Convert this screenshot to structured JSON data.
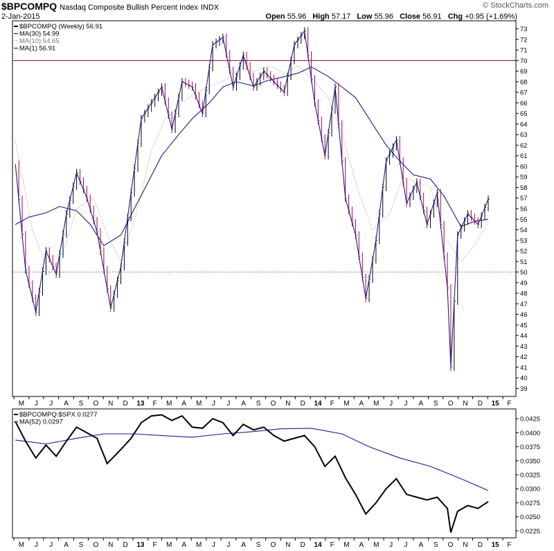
{
  "header": {
    "symbol": "$BPCOMPQ",
    "description": "Nasdaq Composite Bullish Percent Index",
    "exchange": "INDX",
    "date": "2-Jan-2015",
    "copyright": "© StockCharts.com",
    "open_label": "Open",
    "open": "55.96",
    "high_label": "High",
    "high": "57.17",
    "low_label": "Low",
    "low": "55.96",
    "close_label": "Close",
    "close": "56.91",
    "chg_label": "Chg",
    "chg": "+0.95 (+1.69%)"
  },
  "colors": {
    "price_up": "#000000",
    "price_down": "#b0003a",
    "ma30": "#1b1b8f",
    "ma10": "#aaaaaa",
    "ma1": "#1b1b8f",
    "ref70": "#8b0030",
    "ref50": "#888888",
    "ratio": "#000000",
    "ratio_ma": "#1b1b8f"
  },
  "chart_data": [
    {
      "type": "line",
      "panel": "price",
      "legend": [
        {
          "label": "$BPCOMPQ (Weekly) 56.91",
          "style": "line-black"
        },
        {
          "label": "MA(30) 54.99",
          "style": "line-navy"
        },
        {
          "label": "MA(10) 54.65",
          "style": "dotted-gray"
        },
        {
          "label": "MA(1) 56.91",
          "style": "line-navy"
        }
      ],
      "ylim": [
        38.5,
        73.5
      ],
      "yticks": [
        39,
        40,
        41,
        42,
        43,
        44,
        45,
        46,
        47,
        48,
        49,
        50,
        51,
        52,
        53,
        54,
        55,
        56,
        57,
        58,
        59,
        60,
        61,
        62,
        63,
        64,
        65,
        66,
        67,
        68,
        69,
        70,
        71,
        72,
        73
      ],
      "reference_lines": [
        {
          "value": 70,
          "style": "solid"
        },
        {
          "value": 50,
          "style": "dotted"
        }
      ],
      "x_months": [
        "2012-05",
        "2012-06",
        "2012-07",
        "2012-08",
        "2012-09",
        "2012-10",
        "2012-11",
        "2012-12",
        "2013-01",
        "2013-02",
        "2013-03",
        "2013-04",
        "2013-05",
        "2013-06",
        "2013-07",
        "2013-08",
        "2013-09",
        "2013-10",
        "2013-11",
        "2013-12",
        "2014-01",
        "2014-02",
        "2014-03",
        "2014-04",
        "2014-05",
        "2014-06",
        "2014-07",
        "2014-08",
        "2014-09",
        "2014-10",
        "2014-11",
        "2014-12",
        "2015-01",
        "2015-02"
      ],
      "x_labels": [
        "M",
        "J",
        "J",
        "A",
        "S",
        "O",
        "N",
        "D",
        "13",
        "F",
        "M",
        "A",
        "M",
        "J",
        "J",
        "A",
        "S",
        "O",
        "N",
        "D",
        "14",
        "F",
        "M",
        "A",
        "M",
        "J",
        "J",
        "A",
        "S",
        "O",
        "N",
        "D",
        "15",
        "F"
      ],
      "series": [
        {
          "name": "$BPCOMPQ",
          "x": [
            "2012-05-04",
            "2012-05-25",
            "2012-06-15",
            "2012-07-06",
            "2012-07-27",
            "2012-08-17",
            "2012-09-07",
            "2012-09-28",
            "2012-10-19",
            "2012-11-16",
            "2012-12-07",
            "2012-12-28",
            "2013-01-18",
            "2013-02-08",
            "2013-03-01",
            "2013-03-22",
            "2013-04-12",
            "2013-05-03",
            "2013-05-24",
            "2013-06-14",
            "2013-07-05",
            "2013-07-26",
            "2013-08-16",
            "2013-09-06",
            "2013-09-27",
            "2013-10-18",
            "2013-11-08",
            "2013-11-29",
            "2013-12-20",
            "2014-01-10",
            "2014-01-31",
            "2014-02-21",
            "2014-03-14",
            "2014-04-04",
            "2014-04-25",
            "2014-05-16",
            "2014-06-06",
            "2014-06-27",
            "2014-07-18",
            "2014-08-08",
            "2014-08-29",
            "2014-09-19",
            "2014-10-10",
            "2014-10-17",
            "2014-10-31",
            "2014-11-21",
            "2014-12-12",
            "2015-01-02"
          ],
          "y": [
            60.2,
            50.2,
            46.2,
            52.0,
            49.8,
            55.5,
            59.4,
            57.0,
            53.8,
            46.6,
            50.5,
            57.5,
            64.5,
            66.0,
            67.5,
            63.5,
            68.0,
            67.5,
            65.0,
            71.5,
            72.2,
            67.5,
            70.5,
            67.5,
            69.0,
            68.0,
            67.0,
            71.5,
            72.8,
            66.0,
            61.0,
            67.5,
            57.0,
            53.5,
            47.5,
            53.0,
            60.5,
            62.5,
            56.5,
            58.5,
            54.5,
            57.5,
            48.5,
            41.0,
            53.5,
            55.5,
            54.5,
            56.9
          ]
        },
        {
          "name": "MA(30)",
          "x": [
            "2012-05-04",
            "2012-06-01",
            "2012-07-06",
            "2012-08-03",
            "2012-09-07",
            "2012-10-05",
            "2012-11-02",
            "2012-12-07",
            "2013-01-04",
            "2013-02-01",
            "2013-03-01",
            "2013-04-05",
            "2013-05-03",
            "2013-06-07",
            "2013-07-05",
            "2013-08-02",
            "2013-09-06",
            "2013-10-04",
            "2013-11-01",
            "2013-12-06",
            "2014-01-03",
            "2014-02-07",
            "2014-03-07",
            "2014-04-04",
            "2014-05-02",
            "2014-06-06",
            "2014-07-04",
            "2014-08-01",
            "2014-09-05",
            "2014-10-03",
            "2014-11-07",
            "2014-12-05",
            "2015-01-02"
          ],
          "y": [
            54.5,
            55.2,
            55.6,
            56.2,
            55.8,
            54.5,
            52.5,
            53.5,
            56.0,
            58.5,
            61.0,
            63.0,
            64.5,
            66.0,
            67.5,
            68.0,
            67.6,
            68.1,
            68.4,
            68.8,
            69.4,
            68.5,
            67.5,
            66.5,
            64.5,
            62.0,
            60.5,
            59.2,
            58.8,
            57.2,
            54.3,
            54.8,
            55.0
          ]
        },
        {
          "name": "MA(10)",
          "x": [
            "2012-05-04",
            "2012-06-08",
            "2012-07-13",
            "2012-08-10",
            "2012-09-07",
            "2012-10-12",
            "2012-11-09",
            "2012-12-07",
            "2013-01-11",
            "2013-02-08",
            "2013-03-08",
            "2013-04-12",
            "2013-05-10",
            "2013-06-07",
            "2013-07-12",
            "2013-08-09",
            "2013-09-06",
            "2013-10-11",
            "2013-11-08",
            "2013-12-06",
            "2014-01-10",
            "2014-02-07",
            "2014-03-07",
            "2014-04-11",
            "2014-05-09",
            "2014-06-13",
            "2014-07-11",
            "2014-08-08",
            "2014-09-05",
            "2014-10-10",
            "2014-11-07",
            "2014-12-05",
            "2015-01-02"
          ],
          "y": [
            62.5,
            54.0,
            49.8,
            51.8,
            56.0,
            57.0,
            53.5,
            51.0,
            56.0,
            61.5,
            64.5,
            66.0,
            67.0,
            67.5,
            68.2,
            69.2,
            69.0,
            69.5,
            68.8,
            69.5,
            68.0,
            66.5,
            63.0,
            57.5,
            54.0,
            55.5,
            59.0,
            58.5,
            58.0,
            53.0,
            51.0,
            52.5,
            54.7
          ]
        }
      ]
    },
    {
      "type": "line",
      "panel": "ratio",
      "legend": [
        {
          "label": "$BPCOMPQ:$SPX 0.0277",
          "style": "line-black"
        },
        {
          "label": "MA(52) 0.0297",
          "style": "line-navy"
        }
      ],
      "ylim": [
        0.0215,
        0.044
      ],
      "yticks": [
        0.0225,
        0.025,
        0.0275,
        0.03,
        0.0325,
        0.035,
        0.0375,
        0.04,
        0.0425
      ],
      "ytick_labels": [
        "0.0225",
        "0.0250",
        "0.0275",
        "0.0300",
        "0.0325",
        "0.0350",
        "0.0375",
        "0.0400",
        "0.0425"
      ],
      "x_labels": [
        "M",
        "J",
        "J",
        "A",
        "S",
        "O",
        "N",
        "D",
        "13",
        "F",
        "M",
        "A",
        "M",
        "J",
        "J",
        "A",
        "S",
        "O",
        "N",
        "D",
        "14",
        "F",
        "M",
        "A",
        "M",
        "J",
        "J",
        "A",
        "S",
        "O",
        "N",
        "D",
        "15",
        "F"
      ],
      "series": [
        {
          "name": "$BPCOMPQ:$SPX",
          "x": [
            "2012-05-04",
            "2012-05-25",
            "2012-06-15",
            "2012-07-06",
            "2012-07-27",
            "2012-08-17",
            "2012-09-07",
            "2012-09-28",
            "2012-10-19",
            "2012-11-09",
            "2012-12-07",
            "2012-12-28",
            "2013-01-18",
            "2013-02-08",
            "2013-03-01",
            "2013-03-22",
            "2013-04-12",
            "2013-05-03",
            "2013-05-24",
            "2013-06-14",
            "2013-07-05",
            "2013-07-26",
            "2013-08-16",
            "2013-09-06",
            "2013-09-27",
            "2013-10-18",
            "2013-11-08",
            "2013-11-29",
            "2013-12-20",
            "2014-01-10",
            "2014-01-31",
            "2014-02-21",
            "2014-03-14",
            "2014-04-04",
            "2014-04-25",
            "2014-05-16",
            "2014-06-06",
            "2014-06-27",
            "2014-07-18",
            "2014-08-08",
            "2014-08-29",
            "2014-09-19",
            "2014-10-10",
            "2014-10-17",
            "2014-10-31",
            "2014-11-21",
            "2014-12-12",
            "2015-01-02"
          ],
          "y": [
            0.042,
            0.0385,
            0.0355,
            0.0378,
            0.0358,
            0.0385,
            0.041,
            0.04,
            0.039,
            0.0345,
            0.037,
            0.039,
            0.0418,
            0.043,
            0.0432,
            0.0422,
            0.043,
            0.041,
            0.0408,
            0.0425,
            0.0418,
            0.0395,
            0.0415,
            0.0405,
            0.041,
            0.0395,
            0.0385,
            0.039,
            0.0395,
            0.0375,
            0.034,
            0.0358,
            0.032,
            0.029,
            0.0255,
            0.0275,
            0.03,
            0.0318,
            0.029,
            0.0285,
            0.028,
            0.0285,
            0.0265,
            0.0222,
            0.026,
            0.027,
            0.0265,
            0.0277
          ]
        },
        {
          "name": "MA(52)",
          "x": [
            "2012-05-04",
            "2012-07-06",
            "2012-09-07",
            "2012-11-02",
            "2013-01-04",
            "2013-03-01",
            "2013-05-03",
            "2013-07-05",
            "2013-09-06",
            "2013-11-01",
            "2014-01-03",
            "2014-03-07",
            "2014-05-02",
            "2014-07-04",
            "2014-09-05",
            "2014-11-07",
            "2015-01-02"
          ],
          "y": [
            0.0387,
            0.038,
            0.039,
            0.0398,
            0.0398,
            0.0395,
            0.0392,
            0.0398,
            0.0402,
            0.0407,
            0.0408,
            0.0398,
            0.0375,
            0.0355,
            0.034,
            0.0318,
            0.0297
          ]
        }
      ]
    }
  ]
}
